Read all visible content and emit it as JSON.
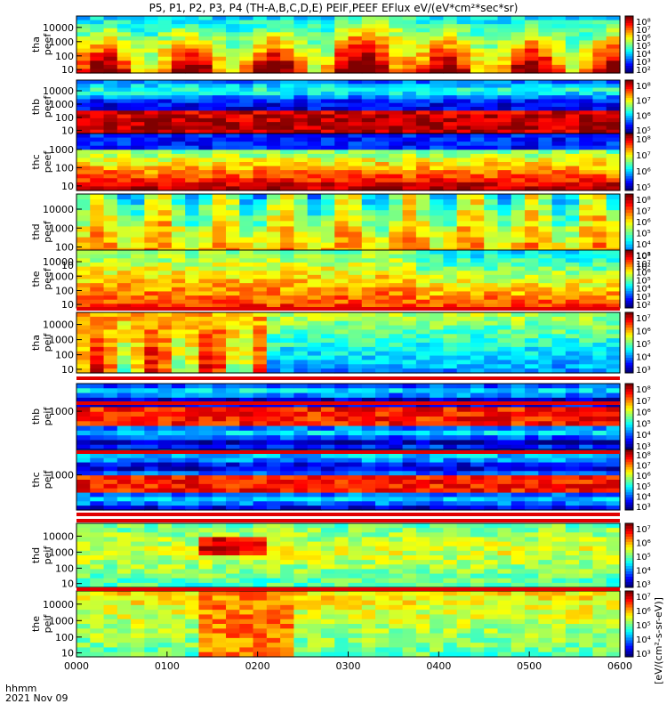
{
  "title": "P5, P1, P2, P3, P4 (TH-A,B,C,D,E) PEIF,PEEF EFlux eV/(eV*cm²*sec*sr)",
  "footer": {
    "time_unit": "hhmm",
    "date": "2021 Nov 09"
  },
  "colorbar_unit": "[eV/(cm²-s-sr-eV)]",
  "chart_data": {
    "type": "heatmap",
    "x_ticks": [
      "0000",
      "0100",
      "0200",
      "0300",
      "0400",
      "0500",
      "0600"
    ],
    "x_range": [
      "0000",
      "0600"
    ],
    "panels": [
      {
        "label_top": "tha",
        "label_bottom": "peef",
        "y_ticks": [
          "10",
          "100",
          "1000",
          "10000"
        ],
        "cbar_ticks": [
          "10²",
          "10³",
          "10⁴",
          "10⁵",
          "10⁶",
          "10⁷",
          "10⁸"
        ]
      },
      {
        "label_top": "thb",
        "label_bottom": "peef",
        "y_ticks": [
          "10",
          "100",
          "1000",
          "10000"
        ],
        "cbar_ticks": [
          "10⁵",
          "10⁶",
          "10⁷",
          "10⁸"
        ]
      },
      {
        "label_top": "thc",
        "label_bottom": "peef",
        "y_ticks": [
          "10",
          "100",
          "1000"
        ],
        "cbar_ticks": [
          "10⁵",
          "10⁶",
          "10⁷",
          "10⁸"
        ]
      },
      {
        "label_top": "thd",
        "label_bottom": "peef",
        "y_ticks": [
          "10",
          "100",
          "1000",
          "10000"
        ],
        "cbar_ticks": [
          "10²",
          "10³",
          "10⁴",
          "10⁵",
          "10⁶",
          "10⁷",
          "10⁸"
        ]
      },
      {
        "label_top": "the",
        "label_bottom": "peef",
        "y_ticks": [
          "10",
          "100",
          "1000",
          "10000"
        ],
        "cbar_ticks": [
          "10²",
          "10³",
          "10⁴",
          "10⁵",
          "10⁶",
          "10⁷",
          "10⁸"
        ]
      },
      {
        "label_top": "tha",
        "label_bottom": "peif",
        "y_ticks": [
          "10",
          "100",
          "1000",
          "10000"
        ],
        "cbar_ticks": [
          "10³",
          "10⁴",
          "10⁵",
          "10⁶",
          "10⁷"
        ]
      },
      {
        "label_top": "thb",
        "label_bottom": "peif",
        "y_ticks": [
          "1000"
        ],
        "cbar_ticks": [
          "10³",
          "10⁴",
          "10⁵",
          "10⁶",
          "10⁷",
          "10⁸"
        ]
      },
      {
        "label_top": "thc",
        "label_bottom": "peif",
        "y_ticks": [
          "1000"
        ],
        "cbar_ticks": [
          "10³",
          "10⁴",
          "10⁵",
          "10⁶",
          "10⁷",
          "10⁸"
        ]
      },
      {
        "label_top": "thd",
        "label_bottom": "peif",
        "y_ticks": [
          "10",
          "100",
          "1000",
          "10000"
        ],
        "cbar_ticks": [
          "10³",
          "10⁴",
          "10⁵",
          "10⁶",
          "10⁷"
        ]
      },
      {
        "label_top": "the",
        "label_bottom": "peif",
        "y_ticks": [
          "10",
          "100",
          "1000",
          "10000"
        ],
        "cbar_ticks": [
          "10³",
          "10⁴",
          "10⁵",
          "10⁶",
          "10⁷"
        ]
      }
    ]
  }
}
